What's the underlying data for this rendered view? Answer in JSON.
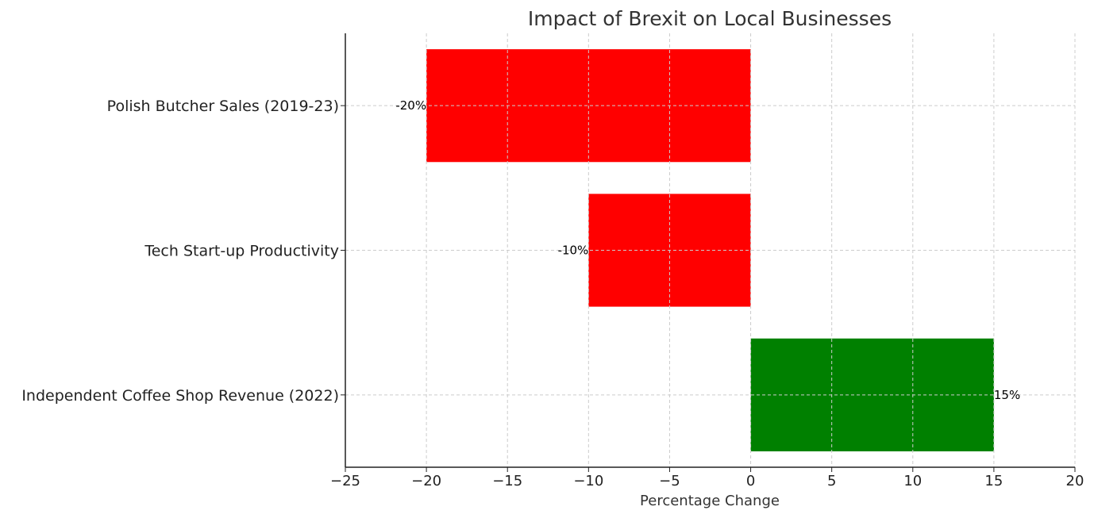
{
  "chart_data": {
    "type": "bar",
    "orientation": "horizontal",
    "title": "Impact of Brexit on Local Businesses",
    "xlabel": "Percentage Change",
    "ylabel": "",
    "xlim": [
      -25,
      20
    ],
    "xticks": [
      -25,
      -20,
      -15,
      -10,
      -5,
      0,
      5,
      10,
      15,
      20
    ],
    "xtick_labels": [
      "−25",
      "−20",
      "−15",
      "−10",
      "−5",
      "0",
      "5",
      "10",
      "15",
      "20"
    ],
    "grid": true,
    "categories": [
      "Polish Butcher Sales (2019-23)",
      "Tech Start-up Productivity",
      "Independent Coffee Shop Revenue (2022)"
    ],
    "values": [
      -20,
      -10,
      15
    ],
    "data_labels": [
      "-20%",
      "-10%",
      "15%"
    ],
    "bar_colors": [
      "#ff0000",
      "#ff0000",
      "#008000"
    ]
  }
}
